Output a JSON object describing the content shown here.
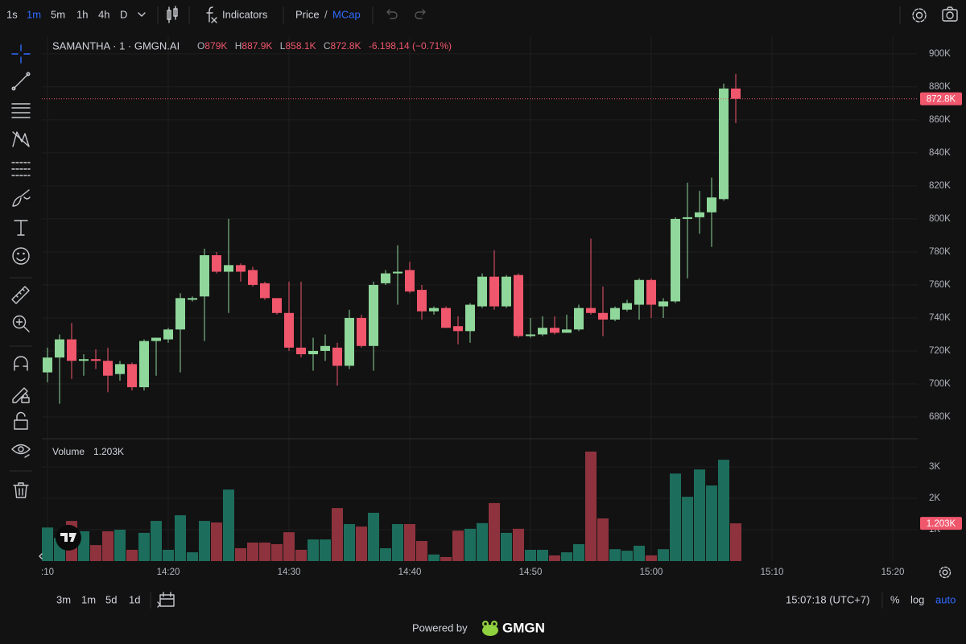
{
  "top_bar": {
    "intervals": [
      "1s",
      "1m",
      "5m",
      "1h",
      "4h",
      "D"
    ],
    "indicators": "Indicators",
    "price": "Price",
    "separator": "/",
    "mcap": "MCap"
  },
  "bottom_bar": {
    "ranges": [
      "3m",
      "1m",
      "5d",
      "1d"
    ],
    "clock": "15:07:18 (UTC+7)",
    "scale_options": [
      "%",
      "log",
      "auto"
    ]
  },
  "footer": {
    "powered_by": "Powered by",
    "brand": "GMGN"
  },
  "chart_data": {
    "type": "candlestick",
    "title": "SAMANTHA · 1 · GMGN.AI",
    "ohlc_keys": [
      "O",
      "H",
      "L",
      "C"
    ],
    "ohlc_labels": {
      "open": "879K",
      "high": "887.9K",
      "low": "858.1K",
      "close": "872.8K"
    },
    "change": "-6.198,14 (−0.71%)",
    "up_color": "#8fd79a",
    "down_color": "#f0566c",
    "x": [
      "14:10",
      "14:11",
      "14:12",
      "14:13",
      "14:14",
      "14:15",
      "14:16",
      "14:17",
      "14:18",
      "14:19",
      "14:20",
      "14:21",
      "14:22",
      "14:23",
      "14:24",
      "14:25",
      "14:26",
      "14:27",
      "14:28",
      "14:29",
      "14:30",
      "14:31",
      "14:32",
      "14:33",
      "14:34",
      "14:35",
      "14:36",
      "14:37",
      "14:38",
      "14:39",
      "14:40",
      "14:41",
      "14:42",
      "14:43",
      "14:44",
      "14:45",
      "14:46",
      "14:47",
      "14:48",
      "14:49",
      "14:50",
      "14:51",
      "14:52",
      "14:53",
      "14:54",
      "14:55",
      "14:56",
      "14:57",
      "14:58",
      "14:59",
      "15:00",
      "15:01",
      "15:02",
      "15:03",
      "15:04",
      "15:05",
      "15:06",
      "15:07"
    ],
    "open": [
      707000,
      716000,
      727000,
      714000,
      715000,
      714000,
      706000,
      712000,
      698000,
      726000,
      727000,
      733000,
      751000,
      753000,
      778000,
      768000,
      772000,
      769000,
      761000,
      752000,
      743000,
      722000,
      718000,
      720000,
      722000,
      711000,
      740000,
      723000,
      761000,
      767000,
      769000,
      757000,
      744000,
      746000,
      735000,
      732000,
      747000,
      765000,
      747000,
      766000,
      729000,
      730000,
      734000,
      731000,
      733000,
      746000,
      743000,
      739000,
      745000,
      748000,
      763000,
      747000,
      750000,
      800000,
      801000,
      804000,
      812000,
      879000
    ],
    "high": [
      722000,
      730000,
      737000,
      718000,
      721000,
      722000,
      714000,
      713000,
      727000,
      728000,
      734000,
      755000,
      753000,
      782000,
      780000,
      800000,
      773000,
      771000,
      762000,
      752000,
      762000,
      762000,
      728000,
      730000,
      725000,
      745000,
      742000,
      762000,
      769000,
      784000,
      774000,
      760000,
      747000,
      747000,
      741000,
      749000,
      767000,
      781000,
      766000,
      767000,
      740000,
      741000,
      741000,
      742000,
      748000,
      788000,
      759000,
      747000,
      751000,
      764000,
      764000,
      752000,
      801000,
      822000,
      817000,
      825000,
      882000,
      887900
    ],
    "low": [
      701000,
      688000,
      703000,
      705000,
      709000,
      695000,
      702000,
      696000,
      696000,
      705000,
      725000,
      707000,
      750000,
      726000,
      767000,
      743000,
      762000,
      759000,
      751000,
      742000,
      720000,
      716000,
      708000,
      714000,
      699000,
      709000,
      722000,
      708000,
      760000,
      748000,
      755000,
      739000,
      742000,
      734000,
      724000,
      725000,
      746000,
      745000,
      746000,
      728000,
      728000,
      729000,
      730000,
      731000,
      732000,
      742000,
      729000,
      738000,
      744000,
      739000,
      740000,
      740000,
      749000,
      764000,
      791000,
      783000,
      811000,
      858100
    ],
    "close": [
      716000,
      727000,
      714000,
      715000,
      714000,
      705000,
      712000,
      698000,
      726000,
      728000,
      733000,
      752000,
      752000,
      778000,
      768000,
      772000,
      768000,
      760000,
      752000,
      743000,
      722000,
      718000,
      720000,
      723000,
      711000,
      740000,
      723000,
      760000,
      767000,
      768000,
      756000,
      744000,
      746000,
      734000,
      732000,
      748000,
      765000,
      747000,
      765000,
      729000,
      730000,
      734000,
      731000,
      733000,
      746000,
      743000,
      739000,
      746000,
      749000,
      763000,
      748000,
      750000,
      800000,
      801000,
      804000,
      813000,
      879000,
      872800
    ],
    "xlim": [
      "14:09",
      "15:22"
    ],
    "xticks": [
      {
        "value": "14:10",
        "label": ":10"
      },
      "14:20",
      "14:30",
      "14:40",
      "14:50",
      "15:00",
      "15:10",
      "15:20"
    ],
    "ylim": [
      666800,
      910700
    ],
    "yticks": [
      {
        "value": 680000,
        "label": "680K"
      },
      {
        "value": 700000,
        "label": "700K"
      },
      {
        "value": 720000,
        "label": "720K"
      },
      {
        "value": 740000,
        "label": "740K"
      },
      {
        "value": 760000,
        "label": "760K"
      },
      {
        "value": 780000,
        "label": "780K"
      },
      {
        "value": 800000,
        "label": "800K"
      },
      {
        "value": 820000,
        "label": "820K"
      },
      {
        "value": 840000,
        "label": "840K"
      },
      {
        "value": 860000,
        "label": "860K"
      },
      {
        "value": 880000,
        "label": "880K"
      },
      {
        "value": 900000,
        "label": "900K"
      }
    ],
    "grid": true,
    "volume": {
      "title": "Volume",
      "last_value_label": "1.203K",
      "up_color": "#1d6d5c",
      "down_color": "#8e333d",
      "values": [
        1070,
        740,
        1280,
        950,
        510,
        950,
        1000,
        360,
        900,
        1280,
        360,
        1460,
        280,
        1280,
        1230,
        2280,
        410,
        590,
        590,
        540,
        920,
        360,
        690,
        690,
        1690,
        1180,
        1100,
        1540,
        410,
        1180,
        1180,
        640,
        210,
        130,
        970,
        1030,
        1210,
        1850,
        900,
        1030,
        360,
        360,
        180,
        280,
        540,
        3490,
        1360,
        380,
        330,
        490,
        180,
        380,
        2790,
        2050,
        2920,
        2410,
        3230,
        1203
      ],
      "ylim": [
        0,
        3900
      ],
      "yticks": [
        {
          "value": 1000,
          "label": "1K"
        },
        {
          "value": 2000,
          "label": "2K"
        },
        {
          "value": 3000,
          "label": "3K"
        }
      ]
    }
  }
}
